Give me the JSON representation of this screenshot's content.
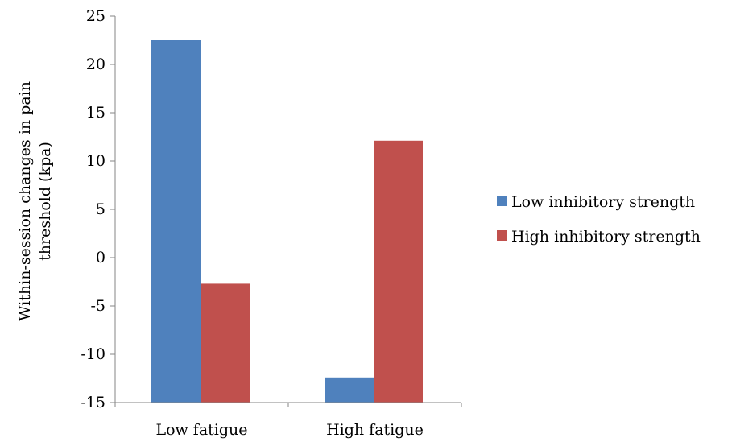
{
  "chart_data": {
    "type": "bar",
    "title": "",
    "xlabel": "",
    "ylabel": [
      "Within-session changes in pain",
      "threshold (kpa)"
    ],
    "categories": [
      "Low fatigue",
      "High fatigue"
    ],
    "series": [
      {
        "name": "Low inhibitory strength",
        "values": [
          22.5,
          -12.4
        ],
        "color": "#4F81BD"
      },
      {
        "name": "High inhibitory strength",
        "values": [
          -2.7,
          12.1
        ],
        "color": "#C0504D"
      }
    ],
    "ylim": [
      -15,
      25
    ],
    "yticks": [
      25,
      20,
      15,
      10,
      5,
      0,
      -5,
      -10,
      -15
    ],
    "ytick_labels": [
      "25",
      "20",
      "15",
      "10",
      "5",
      "0",
      "-5",
      "-10",
      "-15"
    ],
    "grid": false,
    "legend_position": "right"
  }
}
